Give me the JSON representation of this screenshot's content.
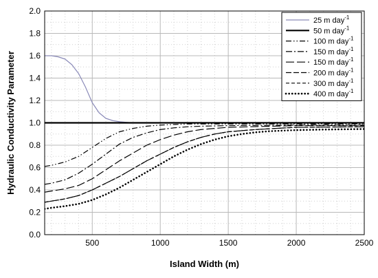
{
  "chart_data": {
    "type": "line",
    "title": "",
    "xlabel": "Island Width (m)",
    "ylabel": "Hydraulic Conductivity Parameter",
    "xlim": [
      150,
      2500
    ],
    "ylim": [
      0.0,
      2.0
    ],
    "x_ticks": [
      500,
      1000,
      1500,
      2000,
      2500
    ],
    "y_ticks": [
      0.0,
      0.2,
      0.4,
      0.6,
      0.8,
      1.0,
      1.2,
      1.4,
      1.6,
      1.8,
      2.0
    ],
    "x_minor_step": 100,
    "y_minor_step": 0.1,
    "grid": "dotted minor and major",
    "legend_position": "top-right",
    "series": [
      {
        "name": "25 m day",
        "superscript": "-1",
        "color": "#8a8ab8",
        "style": "solid-thin",
        "x": [
          150,
          200,
          250,
          300,
          350,
          400,
          450,
          500,
          550,
          600,
          650,
          700,
          750,
          800,
          900,
          1000,
          1500,
          2000,
          2500
        ],
        "y": [
          1.6,
          1.6,
          1.59,
          1.57,
          1.52,
          1.44,
          1.32,
          1.18,
          1.09,
          1.04,
          1.02,
          1.01,
          1.005,
          1.0,
          1.0,
          1.0,
          1.0,
          1.0,
          1.0
        ]
      },
      {
        "name": "50 m day",
        "superscript": "-1",
        "color": "#000000",
        "style": "solid-thick",
        "x": [
          150,
          2500
        ],
        "y": [
          1.0,
          1.0
        ]
      },
      {
        "name": "100 m day",
        "superscript": "-1",
        "color": "#000000",
        "style": "dash-dot-dot",
        "x": [
          150,
          200,
          300,
          400,
          500,
          600,
          700,
          800,
          900,
          1000,
          1100,
          1200,
          1500,
          2000,
          2500
        ],
        "y": [
          0.61,
          0.62,
          0.65,
          0.7,
          0.78,
          0.86,
          0.92,
          0.95,
          0.97,
          0.98,
          0.985,
          0.99,
          0.99,
          0.99,
          0.99
        ]
      },
      {
        "name": "150 m day",
        "superscript": "-1",
        "color": "#000000",
        "style": "dash-dot",
        "x": [
          150,
          200,
          300,
          400,
          500,
          600,
          700,
          800,
          900,
          1000,
          1100,
          1200,
          1300,
          1500,
          2000,
          2500
        ],
        "y": [
          0.45,
          0.46,
          0.49,
          0.55,
          0.63,
          0.72,
          0.81,
          0.87,
          0.91,
          0.94,
          0.955,
          0.965,
          0.97,
          0.975,
          0.98,
          0.98
        ]
      },
      {
        "name": "150 m day",
        "superscript": "-1",
        "color": "#000000",
        "style": "long-dash",
        "x": [
          150,
          200,
          300,
          400,
          500,
          600,
          700,
          800,
          900,
          1000,
          1100,
          1200,
          1300,
          1400,
          1500,
          2000,
          2500
        ],
        "y": [
          0.38,
          0.39,
          0.41,
          0.44,
          0.5,
          0.58,
          0.66,
          0.73,
          0.8,
          0.85,
          0.89,
          0.92,
          0.94,
          0.95,
          0.96,
          0.975,
          0.975
        ]
      },
      {
        "name": "200 m day",
        "superscript": "-1",
        "color": "#000000",
        "style": "medium-dash",
        "x": [
          150,
          200,
          300,
          400,
          500,
          600,
          700,
          800,
          900,
          1000,
          1100,
          1200,
          1300,
          1400,
          1500,
          1700,
          2000,
          2500
        ],
        "y": [
          0.29,
          0.3,
          0.32,
          0.35,
          0.4,
          0.46,
          0.52,
          0.59,
          0.66,
          0.72,
          0.78,
          0.83,
          0.87,
          0.9,
          0.92,
          0.94,
          0.96,
          0.965
        ]
      },
      {
        "name": "300 m day",
        "superscript": "-1",
        "color": "#000000",
        "style": "short-dash",
        "x": [
          150,
          200,
          300,
          400,
          500,
          600,
          700,
          800,
          900,
          1000,
          1100,
          1200,
          1300,
          1400,
          1500,
          1700,
          2000,
          2500
        ],
        "y": [
          0.29,
          0.3,
          0.32,
          0.35,
          0.4,
          0.46,
          0.52,
          0.59,
          0.66,
          0.72,
          0.78,
          0.83,
          0.87,
          0.9,
          0.92,
          0.94,
          0.96,
          0.965
        ]
      },
      {
        "name": "400 m day",
        "superscript": "-1",
        "color": "#000000",
        "style": "dotted-thick",
        "x": [
          150,
          200,
          300,
          400,
          500,
          600,
          700,
          800,
          900,
          1000,
          1100,
          1200,
          1300,
          1400,
          1500,
          1600,
          1700,
          1800,
          2000,
          2200,
          2500
        ],
        "y": [
          0.23,
          0.24,
          0.255,
          0.275,
          0.31,
          0.36,
          0.42,
          0.49,
          0.56,
          0.63,
          0.7,
          0.76,
          0.81,
          0.85,
          0.88,
          0.9,
          0.915,
          0.925,
          0.935,
          0.94,
          0.945
        ]
      }
    ]
  }
}
